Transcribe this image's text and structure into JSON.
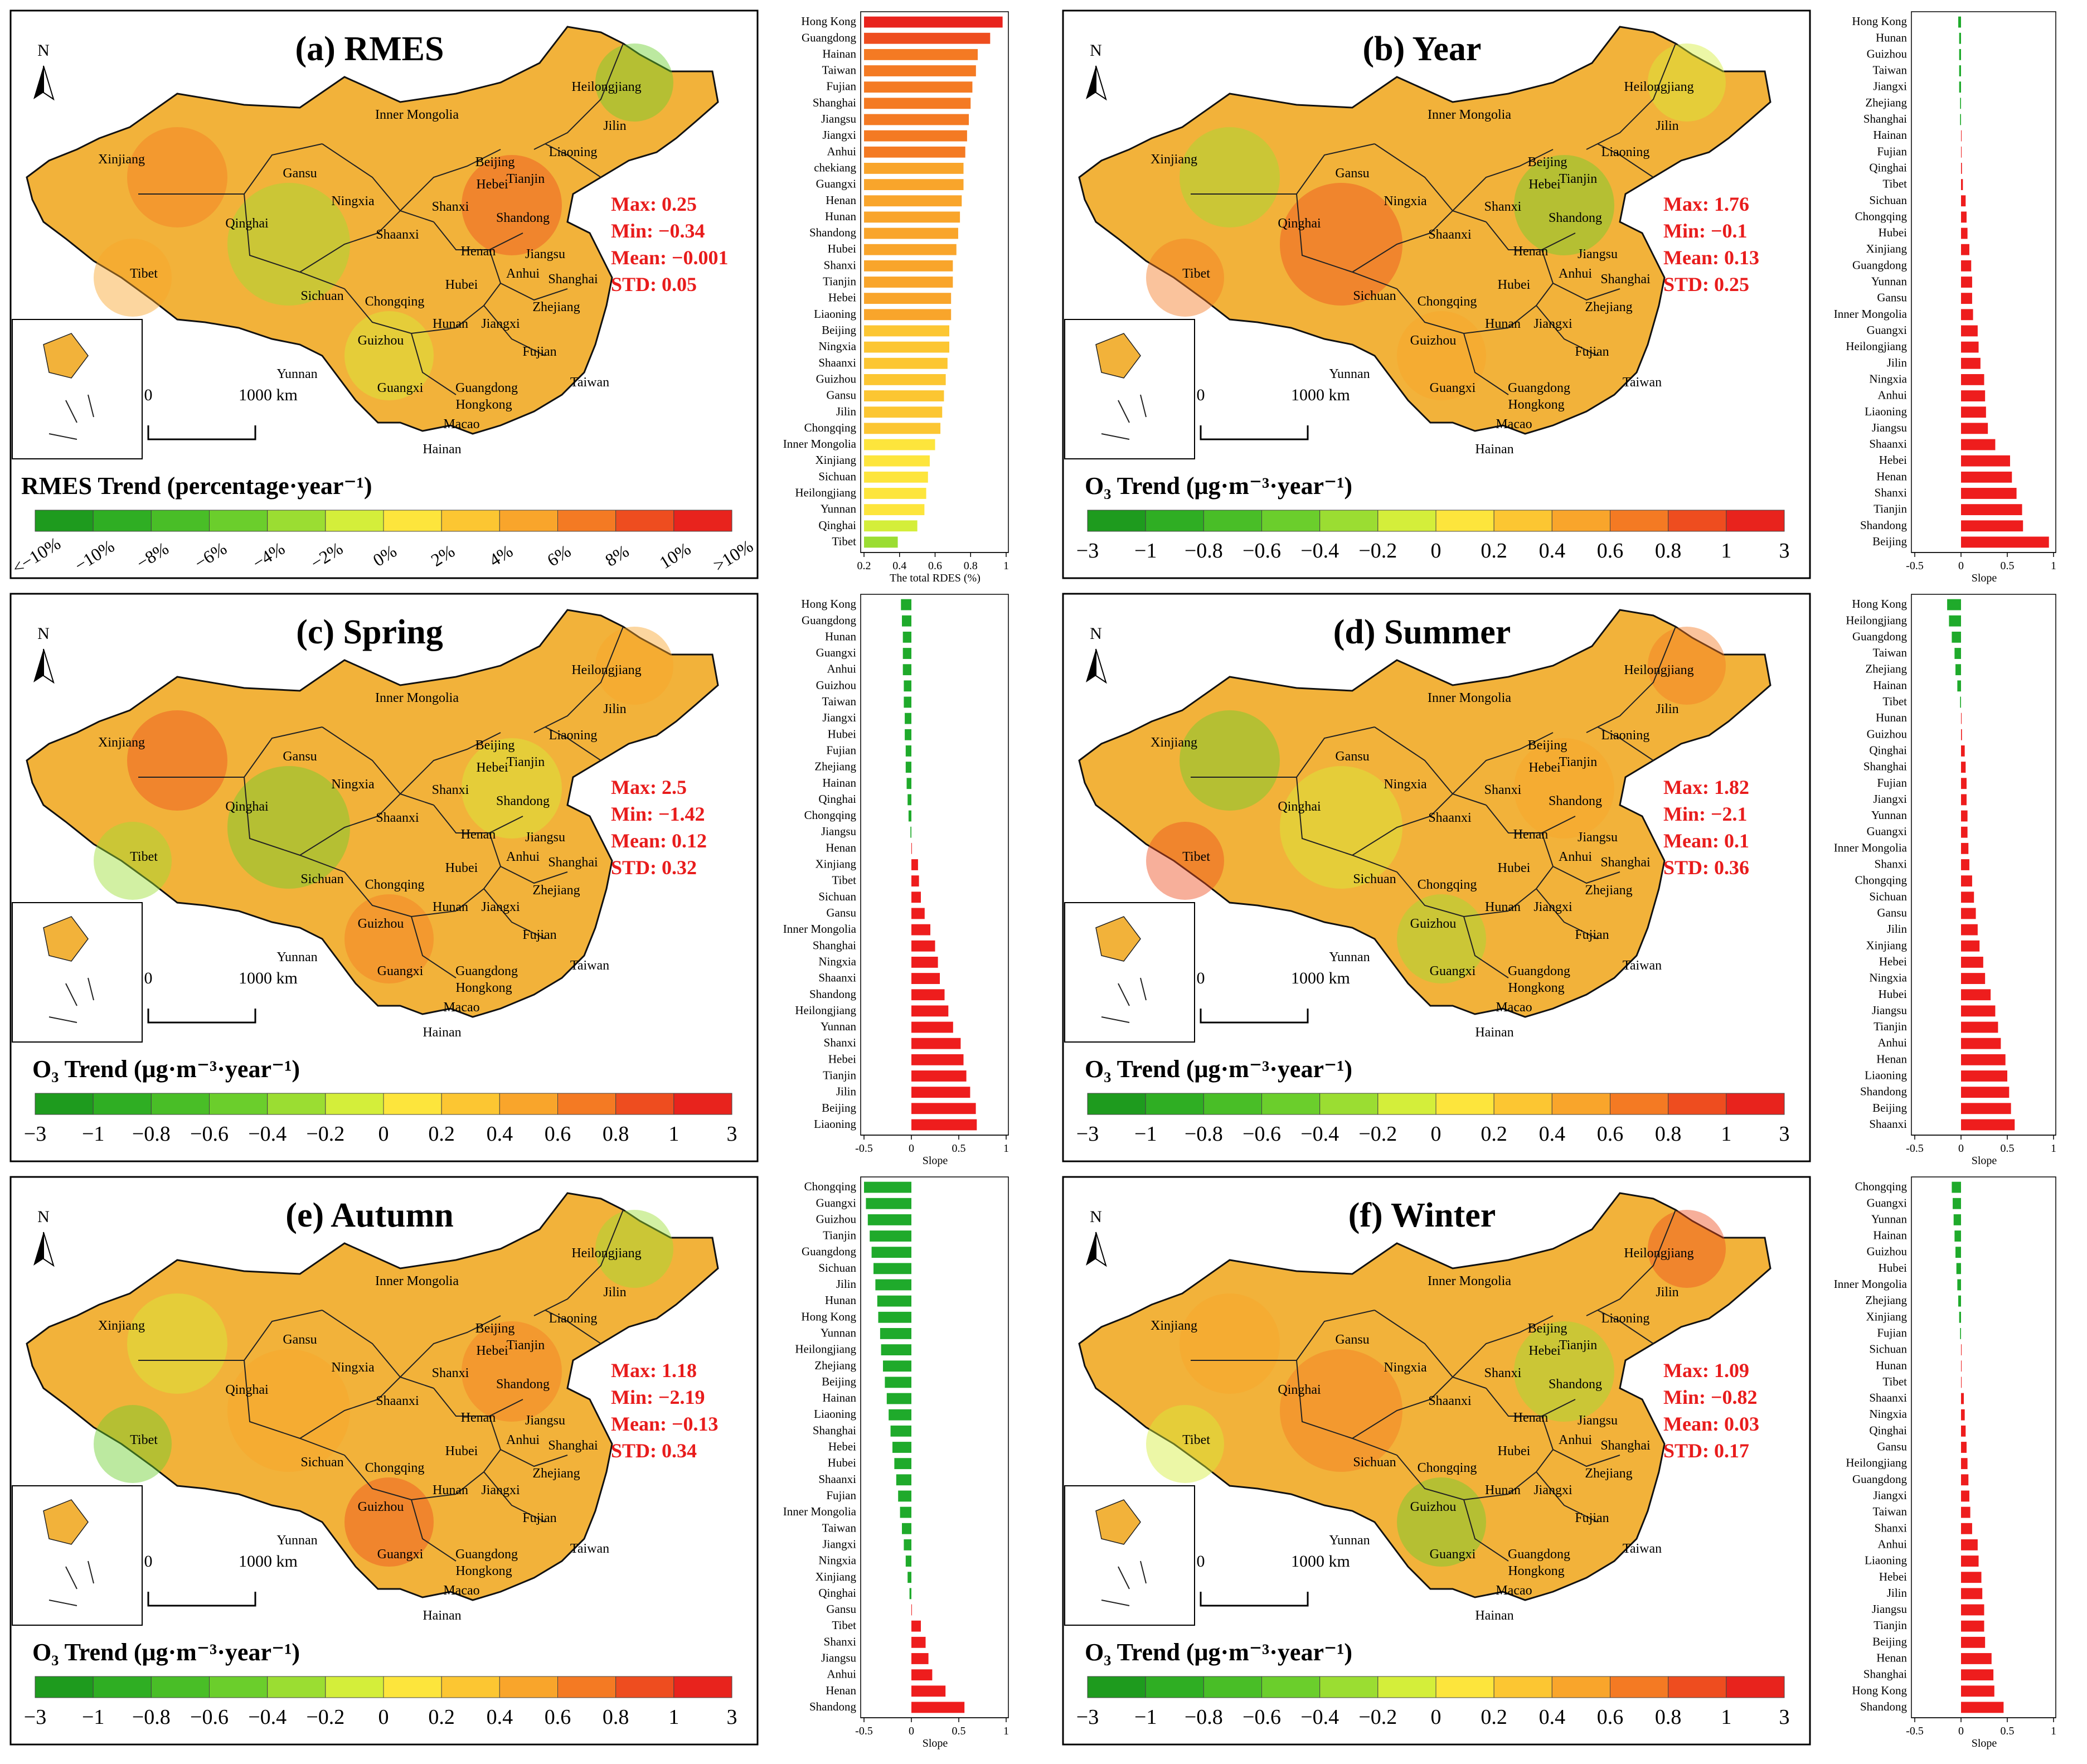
{
  "colors": {
    "scale": [
      "#1e9b1e",
      "#2fae23",
      "#49be27",
      "#6bce2c",
      "#9bdd32",
      "#d4ee3a",
      "#fde53c",
      "#fcc632",
      "#f9a52b",
      "#f47a23",
      "#ee4d1f",
      "#e8231d"
    ],
    "positive_bar": "#ee1d1d",
    "negative_bar": "#1faa2b",
    "stat_text": "#e81c1c",
    "map_base": "#f2b23a"
  },
  "common": {
    "north_label": "N",
    "scale_zero": "0",
    "scale_distance": "1000 km",
    "o3_unit_html": "O₃ Trend (μg·m⁻³·year⁻¹)",
    "o3_ticks": [
      "−3",
      "−1",
      "−0.8",
      "−0.6",
      "−0.4",
      "−0.2",
      "0",
      "0.2",
      "0.4",
      "0.6",
      "0.8",
      "1",
      "3"
    ],
    "rmes_ticks": [
      "<−10%",
      "−10%",
      "−8%",
      "−6%",
      "−4%",
      "−2%",
      "0%",
      "2%",
      "4%",
      "6%",
      "8%",
      "10%",
      ">10%"
    ],
    "region_labels": [
      "Heilongjiang",
      "Inner Mongolia",
      "Jilin",
      "Liaoning",
      "Xinjiang",
      "Gansu",
      "Beijing",
      "Tianjin",
      "Hebei",
      "Ningxia",
      "Shanxi",
      "Shandong",
      "Qinghai",
      "Shaanxi",
      "Henan",
      "Tibet",
      "Jiangsu",
      "Anhui",
      "Shanghai",
      "Hubei",
      "Sichuan",
      "Chongqing",
      "Zhejiang",
      "Hunan",
      "Jiangxi",
      "Guizhou",
      "Fujian",
      "Yunnan",
      "Guangxi",
      "Guangdong",
      "Taiwan",
      "Hongkong",
      "Macao",
      "Hainan"
    ]
  },
  "panels": [
    {
      "title": "(a) RMES",
      "legend_title": "RMES Trend (percentage·year⁻¹)",
      "stats": [
        "Max: 0.25",
        "Min: −0.34",
        "Mean: −0.001",
        "STD: 0.05"
      ]
    },
    {
      "title": "(b) Year",
      "stats": [
        "Max: 1.76",
        "Min: −0.1",
        "Mean: 0.13",
        "STD: 0.25"
      ]
    },
    {
      "title": "(c) Spring",
      "stats": [
        "Max: 2.5",
        "Min: −1.42",
        "Mean: 0.12",
        "STD: 0.32"
      ]
    },
    {
      "title": "(d) Summer",
      "stats": [
        "Max: 1.82",
        "Min: −2.1",
        "Mean: 0.1",
        "STD: 0.36"
      ]
    },
    {
      "title": "(e) Autumn",
      "stats": [
        "Max: 1.18",
        "Min: −2.19",
        "Mean: −0.13",
        "STD: 0.34"
      ]
    },
    {
      "title": "(f) Winter",
      "stats": [
        "Max: 1.09",
        "Min: −0.82",
        "Mean: 0.03",
        "STD: 0.17"
      ]
    }
  ],
  "chart_data": [
    {
      "id": "a",
      "type": "bar",
      "orientation": "horizontal",
      "xlabel": "The total RDES (%)",
      "xlim": [
        0.2,
        1.0
      ],
      "xticks": [
        "0.2",
        "0.4",
        "0.6",
        "0.8",
        "1"
      ],
      "xtick_values": [
        0.2,
        0.4,
        0.6,
        0.8,
        1.0
      ],
      "categories": [
        "Hong Kong",
        "Guangdong",
        "Hainan",
        "Taiwan",
        "Fujian",
        "Shanghai",
        "Jiangsu",
        "Jiangxi",
        "Anhui",
        "chekiang",
        "Guangxi",
        "Henan",
        "Hunan",
        "Shandong",
        "Hubei",
        "Shanxi",
        "Tianjin",
        "Hebei",
        "Liaoning",
        "Beijing",
        "Ningxia",
        "Shaanxi",
        "Guizhou",
        "Gansu",
        "Jilin",
        "Chongqing",
        "Inner Mongolia",
        "Xinjiang",
        "Sichuan",
        "Heilongjiang",
        "Yunnan",
        "Qinghai",
        "Tibet"
      ],
      "values": [
        0.98,
        0.91,
        0.84,
        0.83,
        0.81,
        0.8,
        0.79,
        0.78,
        0.77,
        0.76,
        0.76,
        0.75,
        0.74,
        0.73,
        0.72,
        0.7,
        0.7,
        0.69,
        0.69,
        0.68,
        0.68,
        0.67,
        0.66,
        0.65,
        0.64,
        0.63,
        0.6,
        0.57,
        0.56,
        0.55,
        0.54,
        0.5,
        0.39
      ]
    },
    {
      "id": "b",
      "type": "bar",
      "orientation": "horizontal",
      "xlabel": "Slope",
      "xlim": [
        -0.5,
        1.0
      ],
      "xticks": [
        "-0.5",
        "0",
        "0.5",
        "1"
      ],
      "xtick_values": [
        -0.5,
        0,
        0.5,
        1.0
      ],
      "categories": [
        "Hong Kong",
        "Hunan",
        "Guizhou",
        "Taiwan",
        "Jiangxi",
        "Zhejiang",
        "Shanghai",
        "Hainan",
        "Fujian",
        "Qinghai",
        "Tibet",
        "Sichuan",
        "Chongqing",
        "Hubei",
        "Xinjiang",
        "Guangdong",
        "Yunnan",
        "Gansu",
        "Inner Mongolia",
        "Guangxi",
        "Heilongjiang",
        "Jilin",
        "Ningxia",
        "Anhui",
        "Liaoning",
        "Jiangsu",
        "Shaanxi",
        "Hebei",
        "Henan",
        "Shanxi",
        "Tianjin",
        "Shandong",
        "Beijing"
      ],
      "values": [
        -0.03,
        -0.02,
        -0.02,
        -0.02,
        -0.02,
        -0.01,
        -0.01,
        0.0,
        0.0,
        0.01,
        0.02,
        0.05,
        0.06,
        0.07,
        0.09,
        0.11,
        0.12,
        0.12,
        0.13,
        0.18,
        0.19,
        0.21,
        0.25,
        0.26,
        0.27,
        0.29,
        0.37,
        0.53,
        0.55,
        0.6,
        0.66,
        0.67,
        0.95
      ]
    },
    {
      "id": "c",
      "type": "bar",
      "orientation": "horizontal",
      "xlabel": "Slope",
      "xlim": [
        -0.5,
        1.0
      ],
      "xticks": [
        "-0.5",
        "0",
        "0.5",
        "1"
      ],
      "xtick_values": [
        -0.5,
        0,
        0.5,
        1.0
      ],
      "categories": [
        "Hong Kong",
        "Guangdong",
        "Hunan",
        "Guangxi",
        "Anhui",
        "Guizhou",
        "Taiwan",
        "Jiangxi",
        "Hubei",
        "Fujian",
        "Zhejiang",
        "Hainan",
        "Qinghai",
        "Chongqing",
        "Jiangsu",
        "Henan",
        "Xinjiang",
        "Tibet",
        "Sichuan",
        "Gansu",
        "Inner Mongolia",
        "Shanghai",
        "Ningxia",
        "Shaanxi",
        "Shandong",
        "Heilongjiang",
        "Yunnan",
        "Shanxi",
        "Hebei",
        "Tianjin",
        "Jilin",
        "Beijing",
        "Liaoning"
      ],
      "values": [
        -0.11,
        -0.1,
        -0.09,
        -0.09,
        -0.09,
        -0.08,
        -0.08,
        -0.07,
        -0.07,
        -0.06,
        -0.06,
        -0.05,
        -0.04,
        -0.03,
        -0.01,
        0.0,
        0.07,
        0.08,
        0.1,
        0.14,
        0.2,
        0.25,
        0.28,
        0.3,
        0.35,
        0.39,
        0.44,
        0.52,
        0.55,
        0.58,
        0.62,
        0.68,
        0.69
      ]
    },
    {
      "id": "d",
      "type": "bar",
      "orientation": "horizontal",
      "xlabel": "Slope",
      "xlim": [
        -0.5,
        1.0
      ],
      "xticks": [
        "-0.5",
        "0",
        "0.5",
        "1"
      ],
      "xtick_values": [
        -0.5,
        0,
        0.5,
        1.0
      ],
      "categories": [
        "Hong Kong",
        "Heilongjiang",
        "Guangdong",
        "Taiwan",
        "Zhejiang",
        "Hainan",
        "Tibet",
        "Hunan",
        "Guizhou",
        "Qinghai",
        "Shanghai",
        "Fujian",
        "Jiangxi",
        "Yunnan",
        "Guangxi",
        "Inner Mongolia",
        "Shanxi",
        "Chongqing",
        "Sichuan",
        "Gansu",
        "Jilin",
        "Xinjiang",
        "Hebei",
        "Ningxia",
        "Hubei",
        "Jiangsu",
        "Tianjin",
        "Anhui",
        "Henan",
        "Liaoning",
        "Shandong",
        "Beijing",
        "Shaanxi"
      ],
      "values": [
        -0.15,
        -0.13,
        -0.1,
        -0.07,
        -0.06,
        -0.04,
        -0.01,
        0.0,
        0.01,
        0.04,
        0.05,
        0.06,
        0.06,
        0.07,
        0.07,
        0.08,
        0.09,
        0.12,
        0.14,
        0.16,
        0.18,
        0.2,
        0.24,
        0.26,
        0.32,
        0.37,
        0.4,
        0.43,
        0.48,
        0.5,
        0.52,
        0.54,
        0.58
      ]
    },
    {
      "id": "e",
      "type": "bar",
      "orientation": "horizontal",
      "xlabel": "Slope",
      "xlim": [
        -0.5,
        1.0
      ],
      "xticks": [
        "-0.5",
        "0",
        "0.5",
        "1"
      ],
      "xtick_values": [
        -0.5,
        0,
        0.5,
        1.0
      ],
      "categories": [
        "Chongqing",
        "Guangxi",
        "Guizhou",
        "Tianjin",
        "Guangdong",
        "Sichuan",
        "Jilin",
        "Hunan",
        "Hong Kong",
        "Yunnan",
        "Heilongjiang",
        "Zhejiang",
        "Beijing",
        "Hainan",
        "Liaoning",
        "Shanghai",
        "Hebei",
        "Hubei",
        "Shaanxi",
        "Fujian",
        "Inner Mongolia",
        "Taiwan",
        "Jiangxi",
        "Ningxia",
        "Xinjiang",
        "Qinghai",
        "Gansu",
        "Tibet",
        "Shanxi",
        "Jiangsu",
        "Anhui",
        "Henan",
        "Shandong"
      ],
      "values": [
        -0.5,
        -0.48,
        -0.46,
        -0.44,
        -0.42,
        -0.4,
        -0.38,
        -0.36,
        -0.35,
        -0.33,
        -0.32,
        -0.3,
        -0.28,
        -0.26,
        -0.24,
        -0.22,
        -0.2,
        -0.18,
        -0.16,
        -0.14,
        -0.12,
        -0.1,
        -0.08,
        -0.06,
        -0.04,
        -0.02,
        0.0,
        0.1,
        0.15,
        0.18,
        0.22,
        0.36,
        0.56
      ]
    },
    {
      "id": "f",
      "type": "bar",
      "orientation": "horizontal",
      "xlabel": "Slope",
      "xlim": [
        -0.5,
        1.0
      ],
      "xticks": [
        "-0.5",
        "0",
        "0.5",
        "1"
      ],
      "xtick_values": [
        -0.5,
        0,
        0.5,
        1.0
      ],
      "categories": [
        "Chongqing",
        "Guangxi",
        "Yunnan",
        "Hainan",
        "Guizhou",
        "Hubei",
        "Inner Mongolia",
        "Zhejiang",
        "Xinjiang",
        "Fujian",
        "Sichuan",
        "Hunan",
        "Tibet",
        "Shaanxi",
        "Ningxia",
        "Qinghai",
        "Gansu",
        "Heilongjiang",
        "Guangdong",
        "Jiangxi",
        "Taiwan",
        "Shanxi",
        "Anhui",
        "Liaoning",
        "Hebei",
        "Jilin",
        "Jiangsu",
        "Tianjin",
        "Beijing",
        "Henan",
        "Shanghai",
        "Hong Kong",
        "Shandong"
      ],
      "values": [
        -0.1,
        -0.09,
        -0.08,
        -0.07,
        -0.06,
        -0.05,
        -0.04,
        -0.03,
        -0.02,
        -0.01,
        0.0,
        0.0,
        0.0,
        0.03,
        0.04,
        0.05,
        0.06,
        0.07,
        0.08,
        0.09,
        0.1,
        0.12,
        0.18,
        0.19,
        0.22,
        0.23,
        0.25,
        0.25,
        0.26,
        0.33,
        0.35,
        0.36,
        0.46
      ]
    }
  ]
}
